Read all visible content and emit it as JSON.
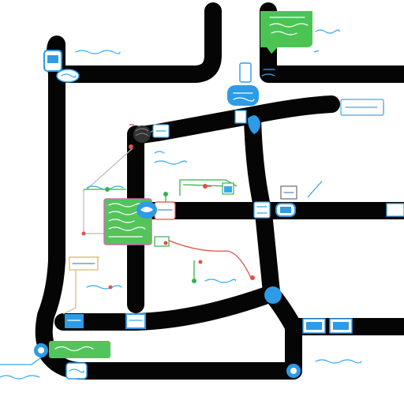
{
  "map": {
    "road_color": "#050505",
    "accent_blue": "#2d9be6",
    "accent_green": "#3cc04a",
    "accent_red": "#e0504a",
    "markers": [
      {
        "name": "location-pin-icon-north",
        "color": "#2d9be6"
      },
      {
        "name": "location-pin-icon-center",
        "color": "#2d9be6"
      },
      {
        "name": "location-pin-icon-south",
        "color": "#2d9be6"
      },
      {
        "name": "location-pin-icon-southwest",
        "color": "#2d9be6"
      },
      {
        "name": "location-pin-icon-dark",
        "color": "#333333"
      }
    ]
  }
}
